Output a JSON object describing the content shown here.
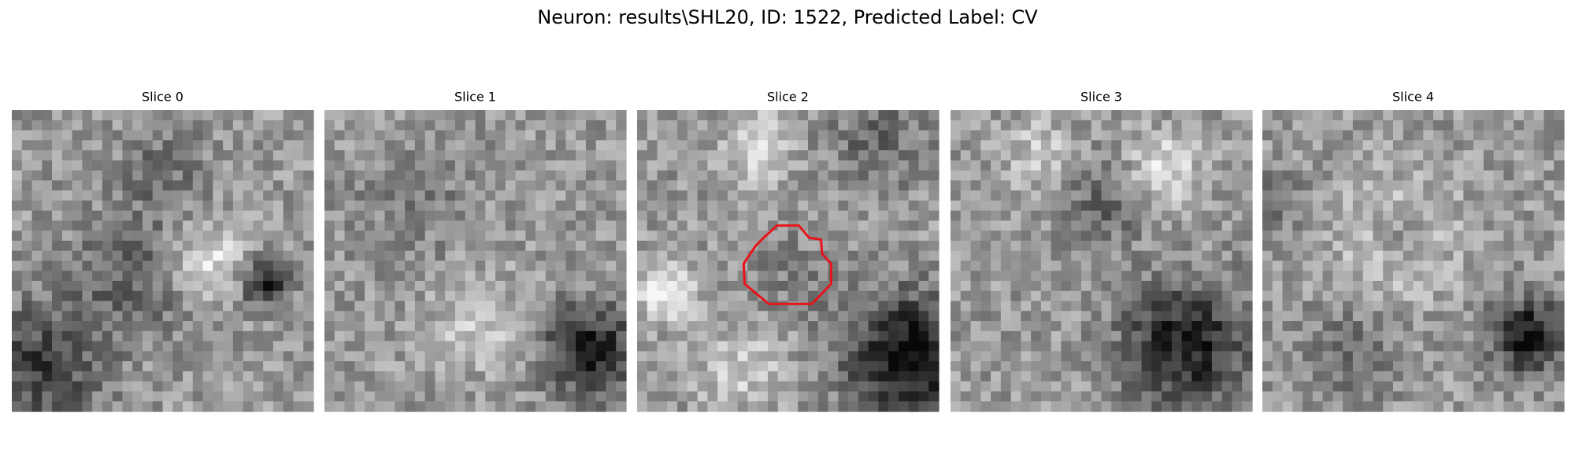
{
  "title": "Neuron: results\\SHL20, ID: 1522, Predicted Label: CV",
  "panels": [
    {
      "title": "Slice 0"
    },
    {
      "title": "Slice 1"
    },
    {
      "title": "Slice 2"
    },
    {
      "title": "Slice 3"
    },
    {
      "title": "Slice 4"
    }
  ]
}
